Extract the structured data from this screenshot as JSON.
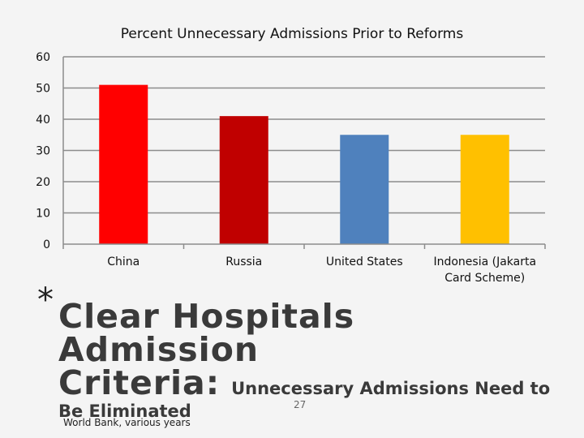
{
  "chart_data": {
    "type": "bar",
    "title": "Percent Unnecessary Admissions Prior to Reforms",
    "categories": [
      "China",
      "Russia",
      "United States",
      "Indonesia (Jakarta Card Scheme)"
    ],
    "category_lines": [
      [
        "China"
      ],
      [
        "Russia"
      ],
      [
        "United States"
      ],
      [
        "Indonesia (Jakarta",
        "Card Scheme)"
      ]
    ],
    "values": [
      51,
      41,
      35,
      35
    ],
    "colors": [
      "#ff0000",
      "#c00000",
      "#4f81bd",
      "#ffc000"
    ],
    "xlabel": "",
    "ylabel": "",
    "ylim": [
      0,
      60
    ],
    "yticks": [
      0,
      10,
      20,
      30,
      40,
      50,
      60
    ],
    "grid": true
  },
  "slide": {
    "bullet": "*",
    "heading_line1": "Clear Hospitals Admission",
    "heading_line2_main": "Criteria:",
    "heading_line2_sub": "Unnecessary Admissions Need to",
    "heading_line3": "Be Eliminated",
    "page_number": "27",
    "source": "World Bank, various years"
  }
}
